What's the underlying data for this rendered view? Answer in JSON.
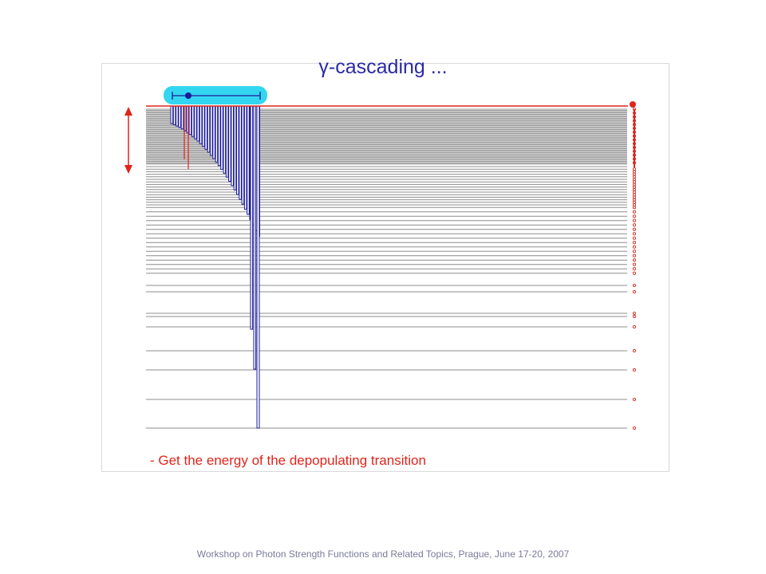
{
  "slide": {
    "title": "γ-cascading ...",
    "caption": "- Get the energy of the depopulating transition",
    "footer": "Workshop on Photon Strength Functions and Related Topics, Prague, June 17-20, 2007"
  },
  "colors": {
    "levels": "#8c8c8c",
    "transitions": "#1a1a9a",
    "highlight": "#e0241b",
    "selector": "#33d6f0",
    "text_title": "#2a2aa5"
  },
  "icons": [
    "double-arrow-icon",
    "selector-slider-icon",
    "population-dot-icon"
  ]
}
